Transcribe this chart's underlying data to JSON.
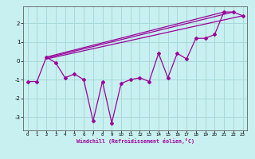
{
  "x": [
    0,
    1,
    2,
    3,
    4,
    5,
    6,
    7,
    8,
    9,
    10,
    11,
    12,
    13,
    14,
    15,
    16,
    17,
    18,
    19,
    20,
    21,
    22,
    23
  ],
  "y_main": [
    -1.1,
    -1.1,
    0.2,
    -0.1,
    -0.9,
    -0.7,
    -1.0,
    -3.2,
    -1.1,
    -3.3,
    -1.2,
    -1.0,
    -0.9,
    -1.1,
    0.4,
    -0.9,
    0.4,
    0.1,
    1.2,
    1.2,
    1.4,
    2.6,
    2.6,
    2.4
  ],
  "line1_x": [
    2,
    21
  ],
  "line1_y": [
    0.2,
    2.6
  ],
  "line2_x": [
    2,
    22
  ],
  "line2_y": [
    0.15,
    2.6
  ],
  "line3_x": [
    2,
    23
  ],
  "line3_y": [
    0.1,
    2.4
  ],
  "line_color": "#9b009b",
  "marker": "D",
  "markersize": 2.0,
  "bg_color": "#c8f0f0",
  "grid_color": "#a8d8d8",
  "xlabel": "Windchill (Refroidissement éolien,°C)",
  "xlim": [
    -0.5,
    23.5
  ],
  "ylim": [
    -3.7,
    2.9
  ],
  "yticks": [
    -3,
    -2,
    -1,
    0,
    1,
    2
  ],
  "xticks": [
    0,
    1,
    2,
    3,
    4,
    5,
    6,
    7,
    8,
    9,
    10,
    11,
    12,
    13,
    14,
    15,
    16,
    17,
    18,
    19,
    20,
    21,
    22,
    23
  ]
}
